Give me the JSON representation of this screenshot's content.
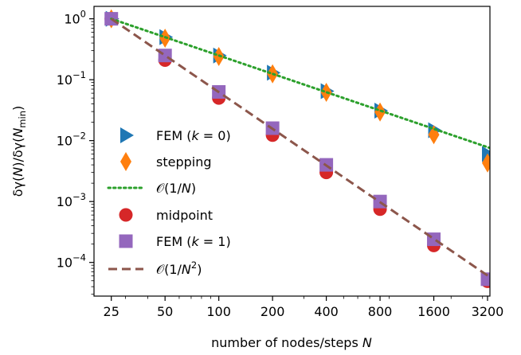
{
  "chart_data": {
    "type": "scatter",
    "x_scale": "log2",
    "y_scale": "log10",
    "xlim": [
      20,
      3300
    ],
    "ylim": [
      2.8e-05,
      1.6
    ],
    "x_ticks": [
      25,
      50,
      100,
      200,
      400,
      800,
      1600,
      3200
    ],
    "x_tick_labels": [
      "25",
      "50",
      "100",
      "200",
      "400",
      "800",
      "1600",
      "3200"
    ],
    "y_ticks": [
      {
        "value": 1,
        "base": "10",
        "exp": "0"
      },
      {
        "value": 0.1,
        "base": "10",
        "exp": "−1"
      },
      {
        "value": 0.01,
        "base": "10",
        "exp": "−2"
      },
      {
        "value": 0.001,
        "base": "10",
        "exp": "−3"
      },
      {
        "value": 0.0001,
        "base": "10",
        "exp": "−4"
      }
    ],
    "xlabel": "number of nodes/steps N",
    "ylabel": "δγ(N)/δγ(N_min)",
    "grid": false,
    "legend_position": "bottom-left",
    "series": [
      {
        "name": "FEM (k = 0)",
        "marker": "triangle-right",
        "color": "#1f77b4",
        "x": [
          25,
          50,
          100,
          200,
          400,
          800,
          1600,
          3200
        ],
        "y": [
          1.0,
          0.5,
          0.25,
          0.13,
          0.065,
          0.031,
          0.0148,
          0.006
        ]
      },
      {
        "name": "stepping",
        "marker": "thin-diamond",
        "color": "#ff7f0e",
        "x": [
          25,
          50,
          100,
          200,
          400,
          800,
          1600,
          3200
        ],
        "y": [
          1.0,
          0.48,
          0.24,
          0.125,
          0.062,
          0.0295,
          0.0125,
          0.0043
        ]
      },
      {
        "name": "O(1/N)",
        "marker": "dotted-line",
        "color": "#2ca02c",
        "x": [
          25,
          3200
        ],
        "y": [
          1.0,
          0.0078
        ]
      },
      {
        "name": "midpoint",
        "marker": "circle",
        "color": "#d62728",
        "x": [
          25,
          50,
          100,
          200,
          400,
          800,
          1600,
          3200
        ],
        "y": [
          1.0,
          0.21,
          0.05,
          0.0123,
          0.003,
          0.00075,
          0.00019,
          4.9e-05
        ]
      },
      {
        "name": "FEM (k = 1)",
        "marker": "square",
        "color": "#9467bd",
        "x": [
          25,
          50,
          100,
          200,
          400,
          800,
          1600,
          3200
        ],
        "y": [
          1.0,
          0.25,
          0.063,
          0.016,
          0.004,
          0.001,
          0.00024,
          5.3e-05
        ]
      },
      {
        "name": "O(1/N²)",
        "marker": "dashed-line",
        "color": "#8c564b",
        "x": [
          25,
          3200
        ],
        "y": [
          1.0,
          6.1e-05
        ]
      }
    ]
  },
  "legend": [
    {
      "pre": "FEM (",
      "italic": "k",
      "post": " = 0)"
    },
    {
      "pre": "stepping",
      "italic": "",
      "post": ""
    },
    {
      "pre": "ℒ",
      "italic": "",
      "post": ""
    },
    {
      "pre": "midpoint",
      "italic": "",
      "post": ""
    },
    {
      "pre": "FEM (",
      "italic": "k",
      "post": " = 1)"
    },
    {
      "pre": "ℒ",
      "italic": "",
      "post": ""
    }
  ],
  "axis_text": {
    "xlabel_main": "number of nodes/steps ",
    "xlabel_var": "N"
  }
}
